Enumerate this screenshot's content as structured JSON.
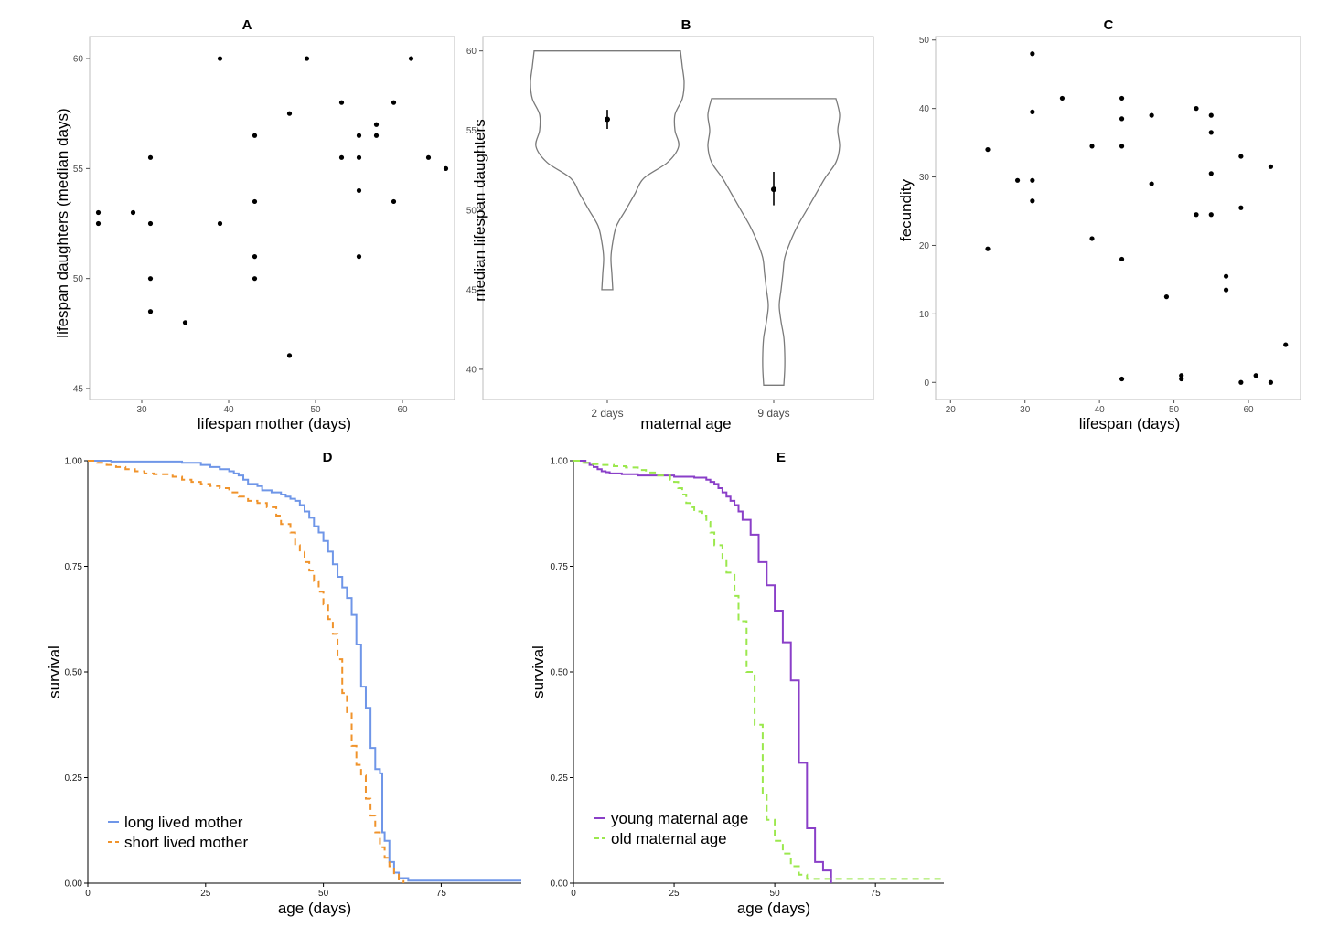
{
  "chart_data": [
    {
      "panel": "A",
      "type": "scatter",
      "title": "A",
      "xlabel": "lifespan mother (days)",
      "ylabel": "lifespan daughters (median days)",
      "xlim": [
        24,
        66
      ],
      "ylim": [
        44.5,
        61
      ],
      "xticks": [
        30,
        40,
        50,
        60
      ],
      "yticks": [
        45,
        50,
        55,
        60
      ],
      "points": [
        [
          25,
          53
        ],
        [
          25,
          52.5
        ],
        [
          29,
          53
        ],
        [
          31,
          55.5
        ],
        [
          31,
          52.5
        ],
        [
          31,
          50
        ],
        [
          31,
          48.5
        ],
        [
          35,
          48
        ],
        [
          39,
          60
        ],
        [
          39,
          52.5
        ],
        [
          43,
          56.5
        ],
        [
          43,
          53.5
        ],
        [
          43,
          51
        ],
        [
          43,
          50
        ],
        [
          47,
          57.5
        ],
        [
          47,
          46.5
        ],
        [
          49,
          60
        ],
        [
          53,
          58
        ],
        [
          53,
          55.5
        ],
        [
          55,
          56.5
        ],
        [
          55,
          55.5
        ],
        [
          55,
          54
        ],
        [
          55,
          51
        ],
        [
          57,
          57
        ],
        [
          57,
          56.5
        ],
        [
          59,
          58
        ],
        [
          59,
          53.5
        ],
        [
          61,
          60
        ],
        [
          63,
          55.5
        ],
        [
          65,
          55
        ]
      ]
    },
    {
      "panel": "B",
      "type": "violin",
      "title": "B",
      "xlabel": "maternal age",
      "ylabel": "median lifespan daughters",
      "ylim": [
        38.1,
        60.9
      ],
      "yticks": [
        40,
        45,
        50,
        55,
        60
      ],
      "categories": [
        "2 days",
        "9 days"
      ],
      "means": [
        55.7,
        51.3
      ],
      "intervals": [
        [
          55.1,
          56.3
        ],
        [
          50.3,
          52.4
        ]
      ],
      "ranges": [
        [
          45,
          60
        ],
        [
          39,
          57
        ]
      ]
    },
    {
      "panel": "C",
      "type": "scatter",
      "title": "C",
      "xlabel": "lifespan (days)",
      "ylabel": "fecundity",
      "xlim": [
        18,
        67
      ],
      "ylim": [
        -2.5,
        50.5
      ],
      "xticks": [
        20,
        30,
        40,
        50,
        60
      ],
      "yticks": [
        0,
        10,
        20,
        30,
        40,
        50
      ],
      "points": [
        [
          25,
          34
        ],
        [
          25,
          19.5
        ],
        [
          29,
          29.5
        ],
        [
          31,
          48
        ],
        [
          31,
          39.5
        ],
        [
          31,
          29.5
        ],
        [
          31,
          26.5
        ],
        [
          35,
          41.5
        ],
        [
          39,
          34.5
        ],
        [
          39,
          21
        ],
        [
          43,
          41.5
        ],
        [
          43,
          38.5
        ],
        [
          43,
          34.5
        ],
        [
          43,
          18
        ],
        [
          43,
          0.5
        ],
        [
          47,
          39
        ],
        [
          47,
          29
        ],
        [
          49,
          12.5
        ],
        [
          51,
          1
        ],
        [
          51,
          0.5
        ],
        [
          53,
          40
        ],
        [
          53,
          24.5
        ],
        [
          55,
          39
        ],
        [
          55,
          36.5
        ],
        [
          55,
          30.5
        ],
        [
          55,
          24.5
        ],
        [
          57,
          15.5
        ],
        [
          57,
          13.5
        ],
        [
          59,
          33
        ],
        [
          59,
          25.5
        ],
        [
          59,
          0
        ],
        [
          61,
          1
        ],
        [
          63,
          31.5
        ],
        [
          63,
          0
        ],
        [
          65,
          5.5
        ]
      ]
    },
    {
      "panel": "D",
      "type": "line",
      "title": "D",
      "xlabel": "age (days)",
      "ylabel": "survival",
      "xlim": [
        0,
        92
      ],
      "ylim": [
        0,
        1
      ],
      "xticks": [
        0,
        25,
        50,
        75
      ],
      "yticks": [
        "0.00",
        "0.25",
        "0.50",
        "0.75",
        "1.00"
      ],
      "series": [
        {
          "name": "long lived mother",
          "color": "#6f96e8",
          "dash": "",
          "steps": [
            [
              0,
              1.0
            ],
            [
              5,
              0.998
            ],
            [
              20,
              0.995
            ],
            [
              24,
              0.99
            ],
            [
              26,
              0.985
            ],
            [
              28,
              0.98
            ],
            [
              30,
              0.975
            ],
            [
              31,
              0.97
            ],
            [
              32,
              0.965
            ],
            [
              33,
              0.955
            ],
            [
              34,
              0.945
            ],
            [
              36,
              0.94
            ],
            [
              37,
              0.93
            ],
            [
              39,
              0.925
            ],
            [
              41,
              0.92
            ],
            [
              42,
              0.915
            ],
            [
              43,
              0.91
            ],
            [
              44,
              0.905
            ],
            [
              45,
              0.895
            ],
            [
              46,
              0.88
            ],
            [
              47,
              0.865
            ],
            [
              48,
              0.845
            ],
            [
              49,
              0.83
            ],
            [
              50,
              0.81
            ],
            [
              51,
              0.785
            ],
            [
              52,
              0.755
            ],
            [
              53,
              0.725
            ],
            [
              54,
              0.7
            ],
            [
              55,
              0.675
            ],
            [
              56,
              0.635
            ],
            [
              57,
              0.565
            ],
            [
              58,
              0.465
            ],
            [
              59,
              0.415
            ],
            [
              60,
              0.32
            ],
            [
              61,
              0.27
            ],
            [
              62,
              0.26
            ],
            [
              62.5,
              0.12
            ],
            [
              63,
              0.1
            ],
            [
              64,
              0.05
            ],
            [
              65,
              0.025
            ],
            [
              66,
              0.012
            ],
            [
              68,
              0.006
            ],
            [
              92,
              0.006
            ]
          ]
        },
        {
          "name": "short lived mother",
          "color": "#f0932b",
          "dash": "7,5",
          "steps": [
            [
              0,
              1.0
            ],
            [
              2,
              0.995
            ],
            [
              4,
              0.99
            ],
            [
              6,
              0.985
            ],
            [
              8,
              0.98
            ],
            [
              10,
              0.975
            ],
            [
              12,
              0.97
            ],
            [
              14,
              0.968
            ],
            [
              18,
              0.962
            ],
            [
              20,
              0.955
            ],
            [
              22,
              0.95
            ],
            [
              24,
              0.945
            ],
            [
              26,
              0.94
            ],
            [
              28,
              0.935
            ],
            [
              30,
              0.925
            ],
            [
              32,
              0.915
            ],
            [
              34,
              0.905
            ],
            [
              36,
              0.9
            ],
            [
              38,
              0.89
            ],
            [
              40,
              0.87
            ],
            [
              41,
              0.85
            ],
            [
              43,
              0.83
            ],
            [
              44,
              0.8
            ],
            [
              45,
              0.785
            ],
            [
              46,
              0.76
            ],
            [
              47,
              0.74
            ],
            [
              48,
              0.715
            ],
            [
              49,
              0.69
            ],
            [
              50,
              0.66
            ],
            [
              51,
              0.625
            ],
            [
              52,
              0.59
            ],
            [
              53,
              0.53
            ],
            [
              54,
              0.45
            ],
            [
              55,
              0.405
            ],
            [
              56,
              0.325
            ],
            [
              57,
              0.28
            ],
            [
              58,
              0.255
            ],
            [
              59,
              0.2
            ],
            [
              60,
              0.16
            ],
            [
              61,
              0.12
            ],
            [
              62,
              0.085
            ],
            [
              63,
              0.06
            ],
            [
              64,
              0.04
            ],
            [
              65,
              0.02
            ],
            [
              66,
              0.005
            ],
            [
              67,
              0
            ]
          ]
        }
      ],
      "legend": "bottom-left"
    },
    {
      "panel": "E",
      "type": "line",
      "title": "E",
      "xlabel": "age (days)",
      "ylabel": "survival",
      "xlim": [
        0,
        92
      ],
      "ylim": [
        0,
        1
      ],
      "xticks": [
        0,
        25,
        50,
        75
      ],
      "yticks": [
        "0.00",
        "0.25",
        "0.50",
        "0.75",
        "1.00"
      ],
      "series": [
        {
          "name": "young maternal age",
          "color": "#8a3fc8",
          "dash": "",
          "steps": [
            [
              0,
              1.0
            ],
            [
              3,
              0.995
            ],
            [
              4,
              0.99
            ],
            [
              5,
              0.985
            ],
            [
              6,
              0.98
            ],
            [
              7,
              0.975
            ],
            [
              8,
              0.973
            ],
            [
              9,
              0.97
            ],
            [
              12,
              0.968
            ],
            [
              16,
              0.965
            ],
            [
              25,
              0.962
            ],
            [
              30,
              0.96
            ],
            [
              33,
              0.955
            ],
            [
              34,
              0.95
            ],
            [
              35,
              0.945
            ],
            [
              36,
              0.935
            ],
            [
              37,
              0.925
            ],
            [
              38,
              0.915
            ],
            [
              39,
              0.905
            ],
            [
              40,
              0.895
            ],
            [
              41,
              0.88
            ],
            [
              42,
              0.86
            ],
            [
              44,
              0.825
            ],
            [
              46,
              0.76
            ],
            [
              48,
              0.705
            ],
            [
              50,
              0.645
            ],
            [
              52,
              0.57
            ],
            [
              54,
              0.48
            ],
            [
              56,
              0.285
            ],
            [
              58,
              0.13
            ],
            [
              60,
              0.05
            ],
            [
              62,
              0.03
            ],
            [
              64,
              0
            ]
          ]
        },
        {
          "name": "old maternal age",
          "color": "#9be84d",
          "dash": "7,5",
          "steps": [
            [
              0,
              1.0
            ],
            [
              2,
              0.995
            ],
            [
              4,
              0.992
            ],
            [
              6,
              0.99
            ],
            [
              10,
              0.987
            ],
            [
              13,
              0.984
            ],
            [
              16,
              0.978
            ],
            [
              18,
              0.972
            ],
            [
              21,
              0.965
            ],
            [
              24,
              0.955
            ],
            [
              25,
              0.95
            ],
            [
              26,
              0.935
            ],
            [
              27,
              0.92
            ],
            [
              28,
              0.9
            ],
            [
              29,
              0.89
            ],
            [
              30,
              0.88
            ],
            [
              32,
              0.87
            ],
            [
              33,
              0.855
            ],
            [
              34,
              0.83
            ],
            [
              35,
              0.8
            ],
            [
              37,
              0.765
            ],
            [
              38,
              0.735
            ],
            [
              40,
              0.68
            ],
            [
              41,
              0.62
            ],
            [
              43,
              0.5
            ],
            [
              45,
              0.375
            ],
            [
              47,
              0.21
            ],
            [
              48,
              0.15
            ],
            [
              50,
              0.1
            ],
            [
              52,
              0.07
            ],
            [
              54,
              0.04
            ],
            [
              56,
              0.02
            ],
            [
              58,
              0.01
            ],
            [
              60,
              0.01
            ],
            [
              92,
              0.01
            ]
          ]
        }
      ],
      "legend": "bottom-left"
    }
  ]
}
